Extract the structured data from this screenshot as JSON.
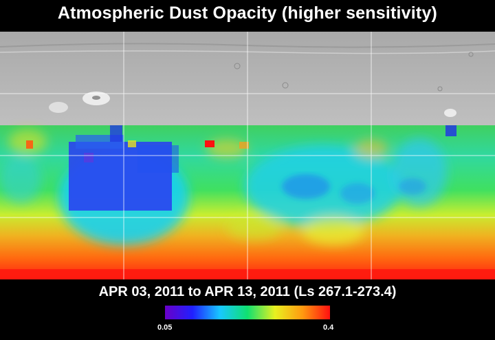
{
  "title": "Atmospheric Dust Opacity (higher sensitivity)",
  "date_range": "APR 03, 2011 to APR 13, 2011 (Ls 267.1-273.4)",
  "colorbar": {
    "min_label": "0.05",
    "max_label": "0.4",
    "stops": [
      "#6a00c8",
      "#2020ff",
      "#18c8ff",
      "#10e070",
      "#e8f020",
      "#ff9a10",
      "#ff1010"
    ]
  }
}
